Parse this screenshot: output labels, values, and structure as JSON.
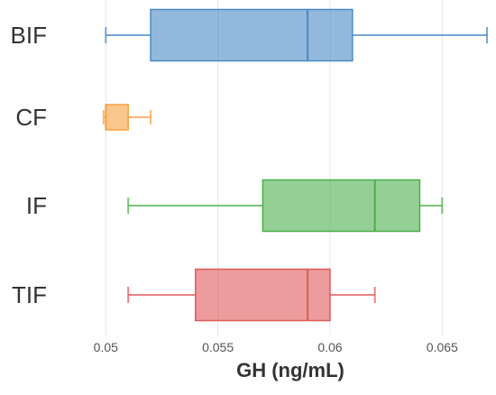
{
  "chart_data": {
    "type": "boxplot",
    "orientation": "horizontal",
    "xlabel": "GH (ng/mL)",
    "ylabel": "",
    "title": "",
    "xlim": [
      0.0485,
      0.0672
    ],
    "xticks": [
      0.05,
      0.055,
      0.06,
      0.065
    ],
    "xtick_labels": [
      "0.05",
      "0.055",
      "0.06",
      "0.065"
    ],
    "grid": true,
    "categories": [
      "BIF",
      "CF",
      "IF",
      "TIF"
    ],
    "series": [
      {
        "category": "BIF",
        "min": 0.05,
        "q1": 0.052,
        "median": 0.059,
        "q3": 0.061,
        "max": 0.067,
        "color": "#4a8ac4"
      },
      {
        "category": "CF",
        "min": 0.0499,
        "q1": 0.05,
        "median": 0.05,
        "q3": 0.051,
        "max": 0.052,
        "color": "#f5a040"
      },
      {
        "category": "IF",
        "min": 0.051,
        "q1": 0.057,
        "median": 0.062,
        "q3": 0.064,
        "max": 0.065,
        "color": "#4cb04c"
      },
      {
        "category": "TIF",
        "min": 0.051,
        "q1": 0.054,
        "median": 0.059,
        "q3": 0.06,
        "max": 0.062,
        "color": "#e05a5a"
      }
    ]
  }
}
